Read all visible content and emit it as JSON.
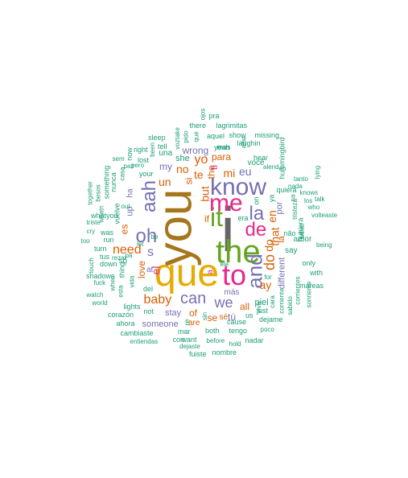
{
  "palette": {
    "green": "#1b9e77",
    "orange": "#d95f02",
    "purple": "#7570b3",
    "magenta": "#e7298a",
    "lime": "#66a61e",
    "gold": "#e6ab02",
    "brown": "#a6761d",
    "gray": "#666666"
  },
  "words": [
    "i",
    "you",
    "que",
    "the",
    "it",
    "to",
    "me",
    "know",
    "de",
    "la",
    "and",
    "oh",
    "aah",
    "can",
    "we",
    "do",
    "s",
    "el",
    "baby",
    "need",
    "yo",
    "no",
    "te",
    "mi",
    "eu",
    "that",
    "en",
    "ay",
    "if",
    "un",
    "my",
    "love",
    "para",
    "si",
    "but",
    "the",
    "es",
    "ti",
    "wrong",
    "se",
    "all",
    "stay",
    "someone",
    "piel",
    "tú",
    "más",
    "different",
    "a",
    "sé",
    "of",
    "up",
    "ha",
    "por",
    "là",
    "she",
    "at",
    "do",
    "una",
    "sleep",
    "tell",
    "voztake",
    "pido",
    "ojos",
    "pra",
    "there",
    "lagrimitas",
    "qué",
    "aquel",
    "show",
    "missing",
    "alfie",
    "laughin",
    "hear",
    "yeah",
    "hummingbird",
    "right",
    "been",
    "now",
    "sem",
    "something",
    "lost",
    "pero",
    "paz",
    "your",
    "nunca",
    "casa",
    "together",
    "besos",
    "vuelve",
    "whatyou",
    "was",
    "run",
    "out",
    "cry",
    "whatn",
    "triste",
    "too",
    "turn",
    "tus",
    "so",
    "touch",
    "shadows",
    "down",
    "rezar",
    "pa",
    "fuck",
    "when",
    "watch",
    "world",
    "thing",
    "lights",
    "corazón",
    "vida",
    "esta",
    "ahora",
    "cambiaste",
    "entiendas",
    "mar",
    "con",
    "want",
    "dejaste",
    "fuiste",
    "before",
    "hold",
    "nombre",
    "both",
    "tengo",
    "cause",
    "poco",
    "nadar",
    "dejame",
    "just",
    "us",
    "are",
    "not",
    "del",
    "re",
    "sin",
    "cara",
    "viva",
    "corriente",
    "sabido",
    "corrientes",
    "sonriente",
    "mareas",
    "with",
    "only",
    "say",
    "amor",
    "being",
    "talk",
    "knows",
    "los",
    "nada",
    "tanto",
    "lying",
    "who",
    "volteaste",
    "tristeza",
    "hubiera",
    "não",
    "other",
    "na",
    "quiera",
    "ya",
    "você",
    "alend",
    "eh",
    "on",
    "era",
    "for",
    "let",
    "be",
    "ele",
    "mas",
    "yeah"
  ]
}
